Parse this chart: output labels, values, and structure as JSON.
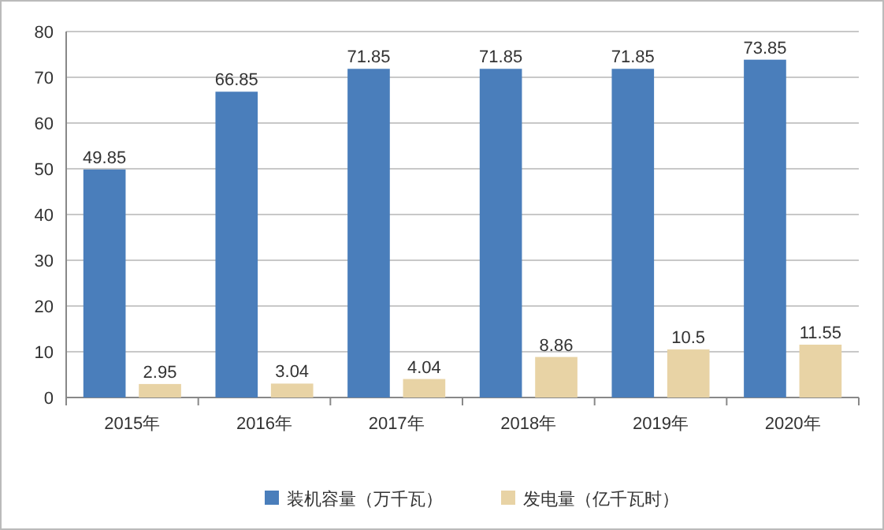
{
  "chart_data": {
    "type": "bar",
    "categories": [
      "2015年",
      "2016年",
      "2017年",
      "2018年",
      "2019年",
      "2020年"
    ],
    "series": [
      {
        "name": "装机容量（万千瓦）",
        "color": "#4a7ebb",
        "values": [
          49.85,
          66.85,
          71.85,
          71.85,
          71.85,
          73.85
        ]
      },
      {
        "name": "发电量（亿千瓦时）",
        "color": "#e8d3a5",
        "values": [
          2.95,
          3.04,
          4.04,
          8.86,
          10.5,
          11.55
        ]
      }
    ],
    "ylim": [
      0,
      80
    ],
    "yticks": [
      0,
      10,
      20,
      30,
      40,
      50,
      60,
      70,
      80
    ],
    "grid": "y",
    "legend": "bottom",
    "data_labels": true
  }
}
